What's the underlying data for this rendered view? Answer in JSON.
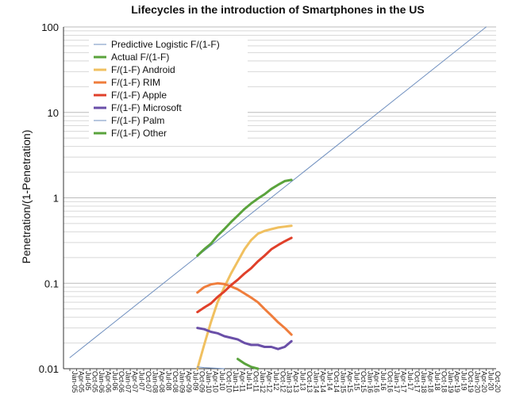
{
  "chart_data": {
    "type": "line",
    "title": "Lifecycles in the introduction of Smartphones in the US",
    "xlabel": "",
    "ylabel": "Penetration/(1-Penetration)",
    "yscale": "log",
    "ylim": [
      0.01,
      100
    ],
    "y_ticks": [
      "0.01",
      "0.1",
      "1",
      "10",
      "100"
    ],
    "grid": "horizontal minor log gridlines",
    "legend_position": "top-left",
    "x_categories": [
      "Jan-05",
      "Apr-05",
      "Jul-05",
      "Oct-05",
      "Jan-06",
      "Apr-06",
      "Jul-06",
      "Oct-06",
      "Jan-07",
      "Apr-07",
      "Jul-07",
      "Oct-07",
      "Jan-08",
      "Apr-08",
      "Jul-08",
      "Oct-08",
      "Jan-09",
      "Apr-09",
      "Jul-09",
      "Oct-09",
      "Jan-10",
      "Apr-10",
      "Jul-10",
      "Oct-10",
      "Jan-11",
      "Apr-11",
      "Jul-11",
      "Oct-11",
      "Jan-12",
      "Apr-12",
      "Jul-12",
      "Oct-12",
      "Jan-13",
      "Apr-13",
      "Jul-13",
      "Oct-13",
      "Jan-14",
      "Apr-14",
      "Jul-14",
      "Oct-14",
      "Jan-15",
      "Apr-15",
      "Jul-15",
      "Oct-15",
      "Jan-16",
      "Apr-16",
      "Jul-16",
      "Oct-16",
      "Jan-17",
      "Apr-17",
      "Jul-17",
      "Oct-17",
      "Jan-18",
      "Apr-18",
      "Jul-18",
      "Oct-18",
      "Jan-19",
      "Apr-19",
      "Jul-19",
      "Oct-19",
      "Jan-20",
      "Apr-20",
      "Jul-20",
      "Oct-20"
    ],
    "series": [
      {
        "name": "Predictive Logistic F/(1-F)",
        "color": "#6f8fbf",
        "width": 1,
        "points": [
          [
            0,
            0.0135
          ],
          [
            62,
            100
          ]
        ]
      },
      {
        "name": "Actual F/(1-F)",
        "color": "#5aa33c",
        "width": 3,
        "points": [
          [
            19,
            0.21
          ],
          [
            20,
            0.25
          ],
          [
            21,
            0.29
          ],
          [
            22,
            0.36
          ],
          [
            23,
            0.43
          ],
          [
            24,
            0.52
          ],
          [
            25,
            0.62
          ],
          [
            26,
            0.74
          ],
          [
            27,
            0.86
          ],
          [
            28,
            0.98
          ],
          [
            29,
            1.1
          ],
          [
            30,
            1.27
          ],
          [
            31,
            1.42
          ],
          [
            32,
            1.57
          ],
          [
            33,
            1.62
          ]
        ]
      },
      {
        "name": "F/(1-F) Android",
        "color": "#f0c060",
        "width": 3,
        "points": [
          [
            19,
            0.01
          ],
          [
            20,
            0.019
          ],
          [
            21,
            0.035
          ],
          [
            22,
            0.06
          ],
          [
            23,
            0.09
          ],
          [
            24,
            0.13
          ],
          [
            25,
            0.18
          ],
          [
            26,
            0.25
          ],
          [
            27,
            0.32
          ],
          [
            28,
            0.38
          ],
          [
            29,
            0.41
          ],
          [
            30,
            0.43
          ],
          [
            31,
            0.45
          ],
          [
            32,
            0.46
          ],
          [
            33,
            0.47
          ]
        ]
      },
      {
        "name": "F/(1-F) RIM",
        "color": "#ef7d3c",
        "width": 3,
        "points": [
          [
            19,
            0.078
          ],
          [
            20,
            0.09
          ],
          [
            21,
            0.097
          ],
          [
            22,
            0.1
          ],
          [
            23,
            0.098
          ],
          [
            24,
            0.092
          ],
          [
            25,
            0.085
          ],
          [
            26,
            0.076
          ],
          [
            27,
            0.068
          ],
          [
            28,
            0.06
          ],
          [
            29,
            0.05
          ],
          [
            30,
            0.042
          ],
          [
            31,
            0.035
          ],
          [
            32,
            0.03
          ],
          [
            33,
            0.025
          ]
        ]
      },
      {
        "name": "F/(1-F) Apple",
        "color": "#e0402a",
        "width": 3,
        "points": [
          [
            19,
            0.046
          ],
          [
            20,
            0.052
          ],
          [
            21,
            0.058
          ],
          [
            22,
            0.069
          ],
          [
            23,
            0.08
          ],
          [
            24,
            0.095
          ],
          [
            25,
            0.11
          ],
          [
            26,
            0.13
          ],
          [
            27,
            0.15
          ],
          [
            28,
            0.18
          ],
          [
            29,
            0.21
          ],
          [
            30,
            0.25
          ],
          [
            31,
            0.28
          ],
          [
            32,
            0.31
          ],
          [
            33,
            0.34
          ]
        ]
      },
      {
        "name": "F/(1-F) Microsoft",
        "color": "#6a4fa8",
        "width": 3,
        "points": [
          [
            19,
            0.03
          ],
          [
            20,
            0.029
          ],
          [
            21,
            0.027
          ],
          [
            22,
            0.026
          ],
          [
            23,
            0.024
          ],
          [
            24,
            0.023
          ],
          [
            25,
            0.022
          ],
          [
            26,
            0.02
          ],
          [
            27,
            0.019
          ],
          [
            28,
            0.019
          ],
          [
            29,
            0.018
          ],
          [
            30,
            0.018
          ],
          [
            31,
            0.017
          ],
          [
            32,
            0.018
          ],
          [
            33,
            0.021
          ]
        ]
      },
      {
        "name": "F/(1-F) Palm",
        "color": "#6f8fbf",
        "width": 1,
        "points": [
          [
            19,
            0.0105
          ],
          [
            20,
            0.0103
          ],
          [
            21,
            0.0102
          ],
          [
            22,
            0.0101
          ],
          [
            23,
            0.01
          ]
        ]
      },
      {
        "name": " F/(1-F) Other",
        "color": "#5aa33c",
        "width": 3,
        "points": [
          [
            25,
            0.013
          ],
          [
            26,
            0.0115
          ],
          [
            27,
            0.0105
          ],
          [
            28,
            0.01
          ]
        ]
      }
    ]
  }
}
